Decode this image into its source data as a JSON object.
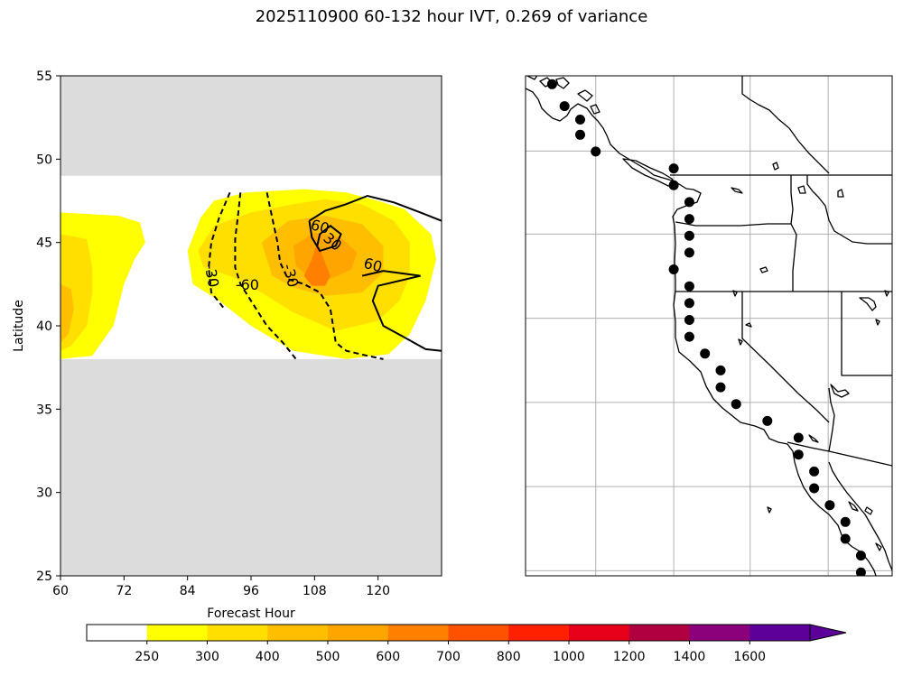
{
  "figure": {
    "title": "2025110900 60-132 hour IVT, 0.269 of variance"
  },
  "chart_data": [
    {
      "type": "contour",
      "panel": "left",
      "xlabel": "Forecast Hour",
      "ylabel": "Latitude",
      "xlim": [
        60,
        132
      ],
      "ylim": [
        25,
        55
      ],
      "xticks": [
        "60",
        "72",
        "84",
        "96",
        "108",
        "120"
      ],
      "yticks": [
        "25",
        "30",
        "35",
        "40",
        "45",
        "50",
        "55"
      ],
      "missing_color": "#dcdcdc",
      "valid_lat_range": [
        38,
        49
      ],
      "filled_regions": [
        {
          "level": 250,
          "color": "#ffff00",
          "points": [
            [
              60,
              46.8
            ],
            [
              71,
              46.6
            ],
            [
              75,
              46.2
            ],
            [
              76,
              45.0
            ],
            [
              74,
              44.0
            ],
            [
              72,
              42.5
            ],
            [
              70,
              40.0
            ],
            [
              66,
              38.2
            ],
            [
              60,
              38.0
            ]
          ]
        },
        {
          "level": 300,
          "color": "#ffdf00",
          "points": [
            [
              60,
              45.5
            ],
            [
              65,
              45.2
            ],
            [
              66,
              43.5
            ],
            [
              66,
              42.0
            ],
            [
              65,
              40.0
            ],
            [
              62,
              38.8
            ],
            [
              60,
              38.5
            ]
          ]
        },
        {
          "level": 400,
          "color": "#ffbf00",
          "points": [
            [
              60,
              42.5
            ],
            [
              62,
              42.2
            ],
            [
              62.5,
              41.0
            ],
            [
              61.5,
              39.5
            ],
            [
              60,
              39.0
            ]
          ]
        },
        {
          "level": 250,
          "color": "#ffff00",
          "points": [
            [
              84,
              44.5
            ],
            [
              86.5,
              46.5
            ],
            [
              89,
              47.5
            ],
            [
              95,
              48.0
            ],
            [
              106,
              48.2
            ],
            [
              114,
              48.0
            ],
            [
              120,
              47.5
            ],
            [
              125,
              47.0
            ],
            [
              130,
              45.5
            ],
            [
              131,
              44.0
            ],
            [
              129,
              41.5
            ],
            [
              126,
              39.5
            ],
            [
              122,
              38.3
            ],
            [
              114,
              38.0
            ],
            [
              104,
              38.5
            ],
            [
              96,
              40.0
            ],
            [
              90,
              41.5
            ],
            [
              85,
              42.5
            ]
          ]
        },
        {
          "level": 300,
          "color": "#ffdf00",
          "points": [
            [
              86,
              44.5
            ],
            [
              89,
              46.0
            ],
            [
              96,
              46.8
            ],
            [
              104,
              47.3
            ],
            [
              110,
              47.6
            ],
            [
              117,
              47.3
            ],
            [
              123,
              46.3
            ],
            [
              126,
              45.0
            ],
            [
              126,
              43.0
            ],
            [
              124,
              41.5
            ],
            [
              120,
              40.3
            ],
            [
              112,
              39.7
            ],
            [
              104,
              40.8
            ],
            [
              98,
              42.0
            ],
            [
              92,
              43.0
            ],
            [
              87,
              43.5
            ]
          ]
        },
        {
          "level": 400,
          "color": "#ffbf00",
          "points": [
            [
              98,
              45.0
            ],
            [
              103,
              46.3
            ],
            [
              110,
              46.6
            ],
            [
              117,
              46.1
            ],
            [
              121,
              44.8
            ],
            [
              121,
              43.2
            ],
            [
              117,
              42.0
            ],
            [
              110,
              41.8
            ],
            [
              104,
              42.3
            ],
            [
              100,
              43.0
            ]
          ]
        },
        {
          "level": 500,
          "color": "#ffa500",
          "points": [
            [
              104,
              44.8
            ],
            [
              108,
              45.6
            ],
            [
              113,
              45.3
            ],
            [
              116,
              44.4
            ],
            [
              115,
              43.4
            ],
            [
              111,
              42.8
            ],
            [
              107,
              42.9
            ],
            [
              104.5,
              43.6
            ]
          ]
        },
        {
          "level": 600,
          "color": "#ff8000",
          "points": [
            [
              106,
              43.0
            ],
            [
              107.5,
              44.0
            ],
            [
              108.5,
              45.0
            ],
            [
              109.5,
              44.2
            ],
            [
              111,
              43.0
            ],
            [
              110,
              42.4
            ],
            [
              107.5,
              42.4
            ]
          ]
        }
      ],
      "contour_lines": [
        {
          "value": 60,
          "style": "solid",
          "points": [
            [
              107,
              46.3
            ],
            [
              110,
              46.9
            ],
            [
              114,
              47.3
            ],
            [
              118,
              47.8
            ],
            [
              123,
              47.4
            ],
            [
              128,
              46.8
            ],
            [
              132,
              46.3
            ]
          ]
        },
        {
          "value": 60,
          "style": "solid",
          "points": [
            [
              107,
              46.3
            ],
            [
              107.5,
              45.3
            ],
            [
              109,
              44.5
            ],
            [
              112,
              44.8
            ],
            [
              113,
              45.5
            ],
            [
              111,
              46.0
            ],
            [
              109,
              45.5
            ],
            [
              108.5,
              44.8
            ]
          ]
        },
        {
          "value": 60,
          "style": "solid",
          "points": [
            [
              117,
              43.0
            ],
            [
              121,
              43.3
            ],
            [
              128,
              43.0
            ],
            [
              120,
              42.4
            ],
            [
              119,
              41.5
            ],
            [
              121,
              40.0
            ],
            [
              125,
              39.3
            ],
            [
              129,
              38.6
            ],
            [
              132,
              38.5
            ]
          ]
        },
        {
          "value": -30,
          "style": "dashed",
          "points": [
            [
              92,
              48.0
            ],
            [
              90,
              46.5
            ],
            [
              88.5,
              45.0
            ],
            [
              88,
              43.5
            ],
            [
              88.5,
              42.0
            ],
            [
              91,
              41.0
            ]
          ]
        },
        {
          "value": -60,
          "style": "dashed",
          "points": [
            [
              94,
              48.0
            ],
            [
              93.5,
              46.5
            ],
            [
              93,
              45.2
            ],
            [
              93,
              43.5
            ],
            [
              94,
              42.5
            ],
            [
              96,
              41.5
            ],
            [
              99,
              40.0
            ],
            [
              102,
              39.0
            ],
            [
              104.5,
              38.0
            ]
          ]
        },
        {
          "value": -30,
          "style": "dashed",
          "points": [
            [
              99,
              48.0
            ],
            [
              100,
              46.5
            ],
            [
              101,
              45.0
            ],
            [
              101.5,
              43.8
            ],
            [
              103,
              42.8
            ],
            [
              106,
              42.5
            ],
            [
              109,
              42.0
            ],
            [
              111,
              41.0
            ],
            [
              112,
              39.0
            ],
            [
              114,
              38.5
            ],
            [
              118,
              38.2
            ],
            [
              121,
              38.0
            ]
          ]
        }
      ],
      "contour_labels": [
        {
          "text": "-30",
          "x": 88.4,
          "y": 43.0,
          "rotate": 80
        },
        {
          "text": "-60",
          "x": 95.3,
          "y": 42.4,
          "rotate": 0
        },
        {
          "text": "-30",
          "x": 103.3,
          "y": 43.0,
          "rotate": 75
        },
        {
          "text": "60",
          "x": 109.0,
          "y": 45.9,
          "rotate": 15
        },
        {
          "text": "30",
          "x": 111.3,
          "y": 45.0,
          "rotate": 40
        },
        {
          "text": "60",
          "x": 119.0,
          "y": 43.6,
          "rotate": 15
        }
      ]
    },
    {
      "type": "map",
      "panel": "right",
      "region": "US West Coast",
      "lon_range": [
        -134.5,
        -111
      ],
      "lat_range": [
        24.8,
        54.5
      ],
      "grid": true,
      "gridlines_lon": [
        -130.0,
        -125.0,
        -120.1,
        -115.1
      ],
      "gridlines_lat": [
        50.03,
        45.1,
        40.1,
        35.1,
        30.1,
        25.1
      ],
      "points": [
        {
          "lon": -132.8,
          "lat": 54.0
        },
        {
          "lon": -132.0,
          "lat": 52.7
        },
        {
          "lon": -131.0,
          "lat": 51.9
        },
        {
          "lon": -131.0,
          "lat": 51.0
        },
        {
          "lon": -130.0,
          "lat": 50.0
        },
        {
          "lon": -125.0,
          "lat": 49.0
        },
        {
          "lon": -125.0,
          "lat": 48.0
        },
        {
          "lon": -124.0,
          "lat": 47.0
        },
        {
          "lon": -124.0,
          "lat": 46.0
        },
        {
          "lon": -124.0,
          "lat": 45.0
        },
        {
          "lon": -124.0,
          "lat": 44.0
        },
        {
          "lon": -125.0,
          "lat": 43.0
        },
        {
          "lon": -124.0,
          "lat": 42.0
        },
        {
          "lon": -124.0,
          "lat": 41.0
        },
        {
          "lon": -124.0,
          "lat": 40.0
        },
        {
          "lon": -124.0,
          "lat": 39.0
        },
        {
          "lon": -123.0,
          "lat": 38.0
        },
        {
          "lon": -122.0,
          "lat": 37.0
        },
        {
          "lon": -122.0,
          "lat": 36.0
        },
        {
          "lon": -121.0,
          "lat": 35.0
        },
        {
          "lon": -119.0,
          "lat": 34.0
        },
        {
          "lon": -117.0,
          "lat": 33.0
        },
        {
          "lon": -117.0,
          "lat": 32.0
        },
        {
          "lon": -116.0,
          "lat": 31.0
        },
        {
          "lon": -116.0,
          "lat": 30.0
        },
        {
          "lon": -115.0,
          "lat": 29.0
        },
        {
          "lon": -114.0,
          "lat": 28.0
        },
        {
          "lon": -114.0,
          "lat": 27.0
        },
        {
          "lon": -113.0,
          "lat": 26.0
        },
        {
          "lon": -113.0,
          "lat": 25.0
        }
      ]
    }
  ],
  "colorbar": {
    "type": "colorbar",
    "orientation": "horizontal",
    "extend": "max",
    "levels": [
      "250",
      "300",
      "400",
      "500",
      "600",
      "700",
      "800",
      "1000",
      "1200",
      "1400",
      "1600"
    ],
    "colors": [
      "#ffffff",
      "#ffff00",
      "#ffdf00",
      "#ffbf00",
      "#ffa500",
      "#ff8000",
      "#ff5200",
      "#ff2000",
      "#e8001a",
      "#b00040",
      "#8b007b",
      "#5c0099"
    ]
  }
}
